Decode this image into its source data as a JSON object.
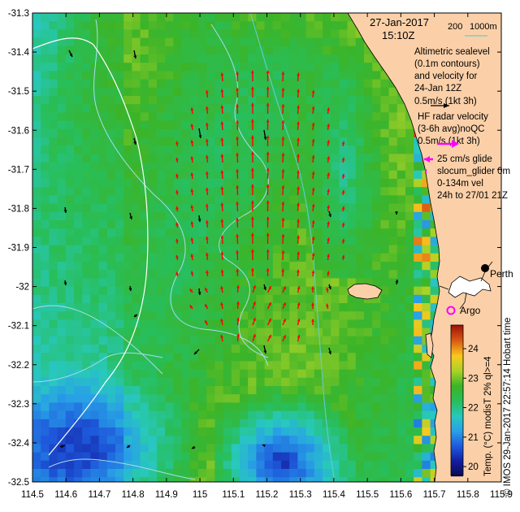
{
  "header": {
    "date": "27-Jan-2017",
    "time": "15:10Z",
    "depth_labels": [
      "200",
      "1000m"
    ]
  },
  "legend": {
    "altimetric": [
      "Altimetric sealevel",
      "(0.1m contours)",
      "and velocity for",
      "24-Jan 12Z",
      "0.5m/s (1kt 3h)"
    ],
    "hf_radar": [
      "HF radar velocity",
      "(3-6h avg)noQC",
      "0.5m/s (1kt 3h)"
    ],
    "glider": [
      "25 cm/s glide",
      "slocum_glider 0m",
      "0-134m vel",
      "24h to 27/01 21Z"
    ]
  },
  "places": {
    "city": "Perth",
    "argo": "Argo"
  },
  "colorbar": {
    "title": "Temp. (°C) modisT 2% ql>=4",
    "ticks": [
      "20",
      "21",
      "22",
      "23",
      "24"
    ],
    "min": 19.7,
    "max": 24.8
  },
  "credit": "© IMOS 29-Jan-2017 22:57:14 Hobart time",
  "axes": {
    "x_ticks": [
      "114.5",
      "114.6",
      "114.7",
      "114.8",
      "114.9",
      "115",
      "115.1",
      "115.2",
      "115.3",
      "115.4",
      "115.5",
      "115.6",
      "115.7",
      "115.8",
      "115.9"
    ],
    "y_ticks": [
      "-31.3",
      "-31.4",
      "-31.5",
      "-31.6",
      "-31.7",
      "-31.8",
      "-31.9",
      "-32",
      "-32.1",
      "-32.2",
      "-32.3",
      "-32.4",
      "-32.5"
    ],
    "xlim": [
      114.5,
      115.9
    ],
    "ylim": [
      -32.5,
      -31.3
    ]
  },
  "colors": {
    "land": "#fbd0a8",
    "hf_radar_arrow": "#ff0000",
    "altimetry_arrow": "#000000",
    "contour": "#aaddee",
    "glider_marker": "#ff00ff",
    "depth_line": "#66cccc"
  }
}
